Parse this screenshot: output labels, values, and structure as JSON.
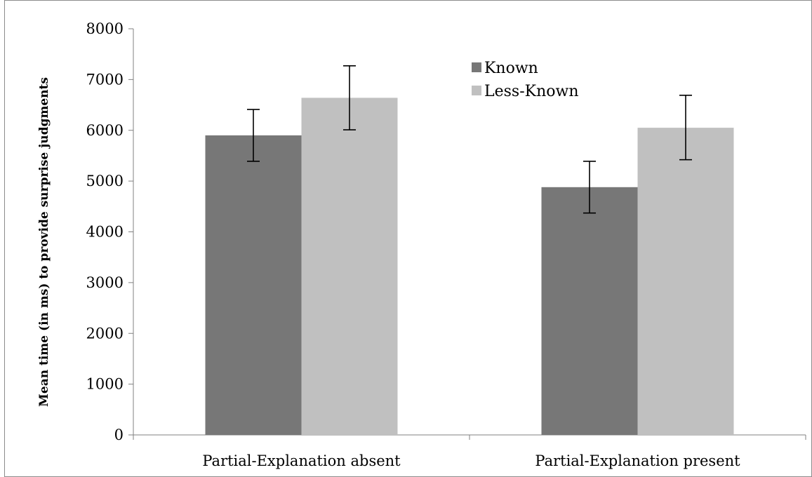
{
  "chart_data": {
    "type": "bar",
    "title": "",
    "xlabel": "",
    "ylabel": "Mean time (in ms) to provide surprise judgments",
    "ylim": [
      0,
      8000
    ],
    "yticks": [
      0,
      1000,
      2000,
      3000,
      4000,
      5000,
      6000,
      7000,
      8000
    ],
    "categories": [
      "Partial-Explanation absent",
      "Partial-Explanation present"
    ],
    "series": [
      {
        "name": "Known",
        "values": [
          5900,
          4880
        ],
        "error_low": [
          5390,
          4370
        ],
        "error_high": [
          6410,
          5390
        ],
        "color": "#777777"
      },
      {
        "name": "Less-Known",
        "values": [
          6640,
          6050
        ],
        "error_low": [
          6010,
          5420
        ],
        "error_high": [
          7270,
          6690
        ],
        "color": "#c0c0c0"
      }
    ],
    "grid": false,
    "legend": "top-center"
  }
}
